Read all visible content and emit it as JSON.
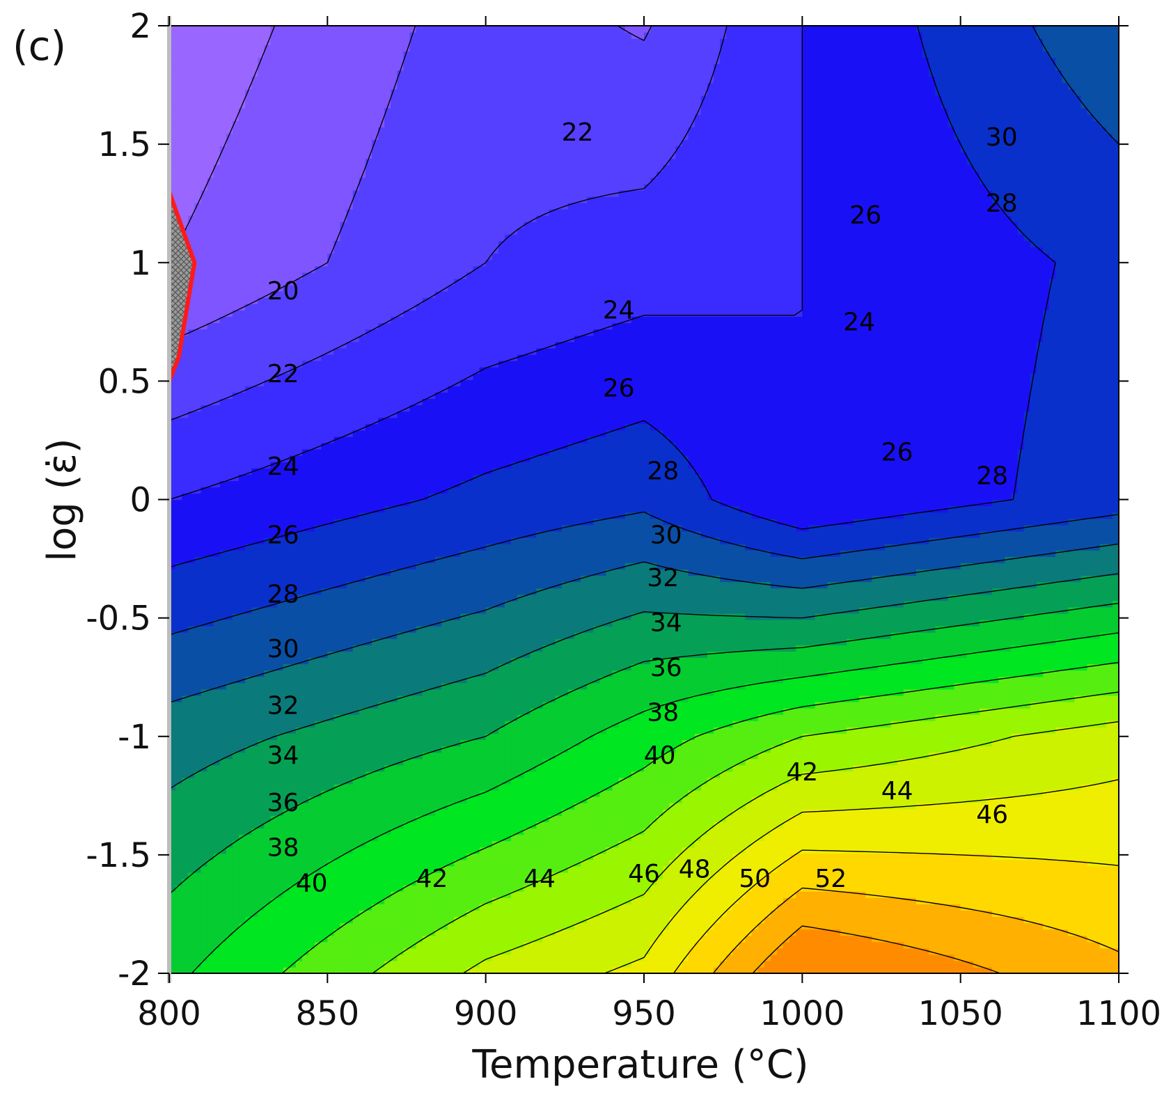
{
  "chart_data": {
    "type": "heatmap",
    "subtype": "filled-contour",
    "panel_label": "(c)",
    "xlabel": "Temperature (°C)",
    "ylabel": "log (ε̇)",
    "xlim": [
      800,
      1100
    ],
    "ylim": [
      -2,
      2
    ],
    "xticks": [
      800,
      850,
      900,
      950,
      1000,
      1050,
      1100
    ],
    "yticks": [
      2,
      1.5,
      1,
      0.5,
      0,
      -0.5,
      -1,
      -1.5,
      -2
    ],
    "ytick_labels": [
      "2",
      "1.5",
      "1",
      "0.5",
      "0",
      "-0.5",
      "-1",
      "-1.5",
      "-2"
    ],
    "grid_x": [
      800,
      900,
      950,
      1000,
      1100
    ],
    "grid_y": [
      -2,
      -1,
      0,
      1,
      2
    ],
    "z_grid": [
      [
        37.5,
        44.5,
        46.5,
        54.5,
        50.5
      ],
      [
        33,
        36,
        39,
        42,
        45
      ],
      [
        26,
        28.5,
        29.5,
        26,
        29
      ],
      [
        20,
        24,
        25,
        26,
        28.5
      ],
      [
        18.5,
        23,
        21.8,
        26,
        31.5
      ]
    ],
    "contour_levels": [
      20,
      22,
      24,
      26,
      28,
      30,
      32,
      34,
      36,
      38,
      40,
      42,
      44,
      46,
      48,
      50,
      52
    ],
    "fill_colors": [
      "#9966ff",
      "#7f55ff",
      "#5540ff",
      "#3a2cff",
      "#1a10f5",
      "#0a30cc",
      "#0a4fa6",
      "#0a7a7a",
      "#05a055",
      "#05cc30",
      "#00e620",
      "#55ee10",
      "#99f500",
      "#ccf200",
      "#f0ee00",
      "#ffd800",
      "#ffb000",
      "#ff8c00",
      "#ff5f00"
    ],
    "instability_region": {
      "color": "#ff1a1a",
      "x": [
        800,
        808,
        803,
        800
      ],
      "y": [
        1.3,
        1.0,
        0.6,
        0.5
      ]
    },
    "contour_labels": [
      {
        "text": "20",
        "x": 836,
        "y": 0.88
      },
      {
        "text": "22",
        "x": 836,
        "y": 0.53
      },
      {
        "text": "24",
        "x": 836,
        "y": 0.14
      },
      {
        "text": "26",
        "x": 836,
        "y": -0.15
      },
      {
        "text": "28",
        "x": 836,
        "y": -0.4
      },
      {
        "text": "30",
        "x": 836,
        "y": -0.63
      },
      {
        "text": "32",
        "x": 836,
        "y": -0.87
      },
      {
        "text": "34",
        "x": 836,
        "y": -1.08
      },
      {
        "text": "36",
        "x": 836,
        "y": -1.28
      },
      {
        "text": "38",
        "x": 836,
        "y": -1.47
      },
      {
        "text": "40",
        "x": 845,
        "y": -1.62
      },
      {
        "text": "42",
        "x": 883,
        "y": -1.6
      },
      {
        "text": "44",
        "x": 917,
        "y": -1.6
      },
      {
        "text": "46",
        "x": 950,
        "y": -1.58
      },
      {
        "text": "48",
        "x": 966,
        "y": -1.56
      },
      {
        "text": "50",
        "x": 985,
        "y": -1.6
      },
      {
        "text": "52",
        "x": 1009,
        "y": -1.6
      },
      {
        "text": "24",
        "x": 942,
        "y": 0.8
      },
      {
        "text": "26",
        "x": 942,
        "y": 0.47
      },
      {
        "text": "28",
        "x": 956,
        "y": 0.12
      },
      {
        "text": "30",
        "x": 957,
        "y": -0.15
      },
      {
        "text": "32",
        "x": 956,
        "y": -0.33
      },
      {
        "text": "34",
        "x": 957,
        "y": -0.52
      },
      {
        "text": "36",
        "x": 957,
        "y": -0.71
      },
      {
        "text": "38",
        "x": 956,
        "y": -0.9
      },
      {
        "text": "40",
        "x": 955,
        "y": -1.08
      },
      {
        "text": "42",
        "x": 1000,
        "y": -1.15
      },
      {
        "text": "44",
        "x": 1030,
        "y": -1.23
      },
      {
        "text": "46",
        "x": 1060,
        "y": -1.33
      },
      {
        "text": "22",
        "x": 929,
        "y": 1.55
      },
      {
        "text": "26",
        "x": 1020,
        "y": 1.2
      },
      {
        "text": "24",
        "x": 1018,
        "y": 0.75
      },
      {
        "text": "26",
        "x": 1030,
        "y": 0.2
      },
      {
        "text": "28",
        "x": 1060,
        "y": 0.1
      },
      {
        "text": "28",
        "x": 1063,
        "y": 1.25
      },
      {
        "text": "30",
        "x": 1063,
        "y": 1.53
      }
    ]
  }
}
